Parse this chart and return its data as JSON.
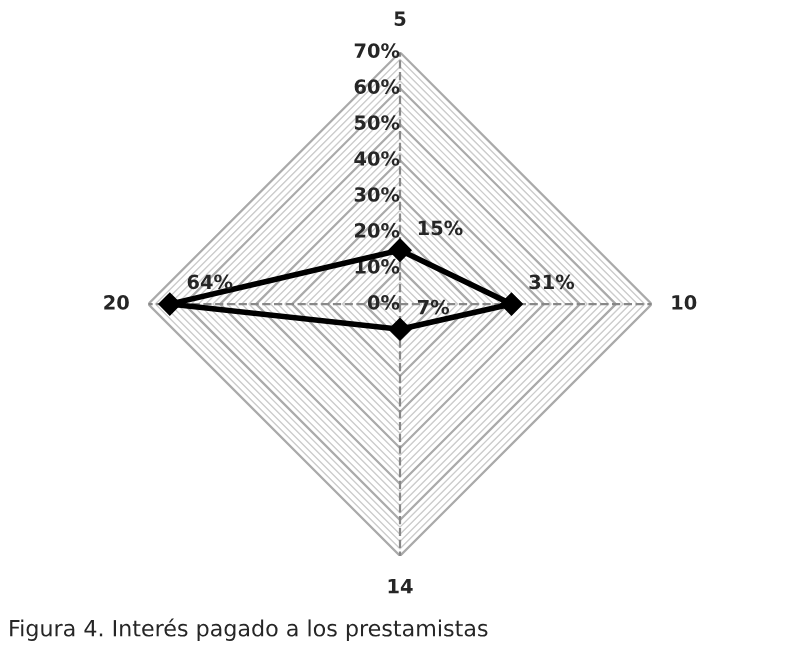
{
  "chart_data": {
    "type": "radar",
    "title": "Figura 4. Interés pagado a los prestamistas",
    "categories": [
      "5",
      "10",
      "14",
      "20"
    ],
    "series": [
      {
        "color": "#000000",
        "values": [
          15,
          31,
          7,
          64
        ],
        "value_labels": [
          "15%",
          "31%",
          "7%",
          "64%"
        ]
      }
    ],
    "ylim": [
      0,
      70
    ],
    "yticks": [
      {
        "value": 0,
        "label": "0%"
      },
      {
        "value": 10,
        "label": "10%"
      },
      {
        "value": 20,
        "label": "20%"
      },
      {
        "value": 30,
        "label": "30%"
      },
      {
        "value": 40,
        "label": "40%"
      },
      {
        "value": 50,
        "label": "50%"
      },
      {
        "value": 60,
        "label": "60%"
      },
      {
        "value": 70,
        "label": "70%"
      }
    ],
    "grid": true,
    "marker": "diamond",
    "line_style": "solid"
  }
}
